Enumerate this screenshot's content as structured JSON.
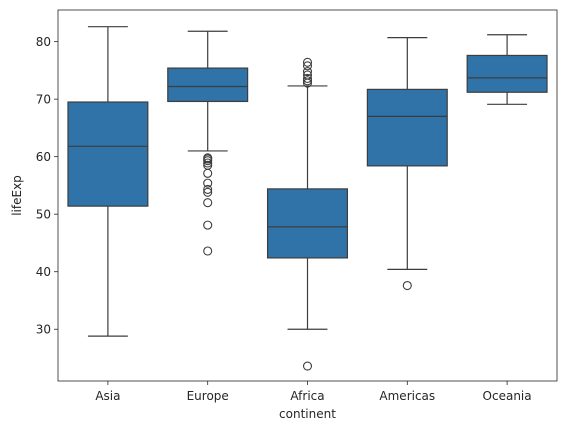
{
  "chart_data": {
    "type": "box",
    "title": "",
    "xlabel": "continent",
    "ylabel": "lifeExp",
    "ylim": [
      21,
      85.5
    ],
    "yticks": [
      30,
      40,
      50,
      60,
      70,
      80
    ],
    "grid": false,
    "legend": "none",
    "box_color": "#2f73a8",
    "line_color": "#3d3d3d",
    "categories": [
      "Asia",
      "Europe",
      "Africa",
      "Americas",
      "Oceania"
    ],
    "boxes": [
      {
        "category": "Asia",
        "whisker_low": 28.8,
        "q1": 51.4,
        "median": 61.8,
        "q3": 69.5,
        "whisker_high": 82.6,
        "outliers": []
      },
      {
        "category": "Europe",
        "whisker_low": 61.0,
        "q1": 69.6,
        "median": 72.2,
        "q3": 75.4,
        "whisker_high": 81.8,
        "outliers": [
          59.8,
          59.6,
          59.3,
          58.9,
          58.5,
          57.1,
          55.4,
          54.3,
          53.8,
          52.0,
          48.1,
          43.6
        ]
      },
      {
        "category": "Africa",
        "whisker_low": 30.0,
        "q1": 42.4,
        "median": 47.8,
        "q3": 54.4,
        "whisker_high": 72.3,
        "outliers": [
          76.4,
          75.8,
          74.8,
          74.2,
          73.6,
          73.2,
          72.8,
          23.6
        ]
      },
      {
        "category": "Americas",
        "whisker_low": 40.4,
        "q1": 58.4,
        "median": 67.0,
        "q3": 71.7,
        "whisker_high": 80.7,
        "outliers": [
          37.6
        ]
      },
      {
        "category": "Oceania",
        "whisker_low": 69.1,
        "q1": 71.2,
        "median": 73.7,
        "q3": 77.6,
        "whisker_high": 81.2,
        "outliers": []
      }
    ]
  }
}
